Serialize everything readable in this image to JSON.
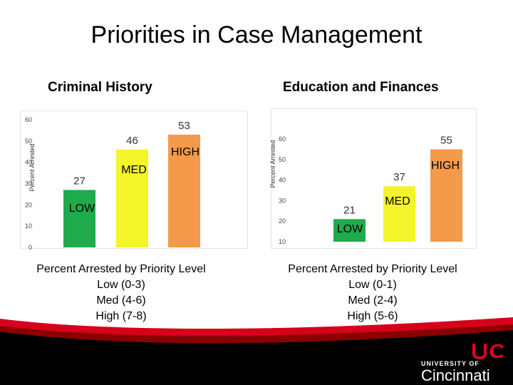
{
  "slide": {
    "title": "Priorities in Case Management"
  },
  "charts": [
    {
      "title": "Criminal History",
      "caption": [
        "Percent Arrested by Priority Level",
        "Low (0-3)",
        "Med (4-6)",
        "High (7-8)"
      ]
    },
    {
      "title": "Education and Finances",
      "caption": [
        "Percent Arrested by Priority Level",
        "Low (0-1)",
        "Med (2-4)",
        "High (5-6)"
      ]
    }
  ],
  "logo": {
    "university_of": "UNIVERSITY OF",
    "name": "Cincinnati"
  },
  "chart_data": [
    {
      "type": "bar",
      "title": "Criminal History",
      "ylabel": "Percent Arrested",
      "ylim": [
        0,
        60
      ],
      "yticks": [
        0,
        10,
        20,
        30,
        40,
        50,
        60
      ],
      "categories": [
        "LOW",
        "MED",
        "HIGH"
      ],
      "values": [
        27,
        46,
        53
      ],
      "colors": [
        "#1faa4c",
        "#f4f42a",
        "#f39a4b"
      ],
      "grid": false
    },
    {
      "type": "bar",
      "title": "Education and Finances",
      "ylabel": "Percent Arrested",
      "ylim": [
        10,
        60
      ],
      "yticks": [
        10,
        20,
        30,
        40,
        50,
        60
      ],
      "categories": [
        "LOW",
        "MED",
        "HIGH"
      ],
      "values": [
        21,
        37,
        55
      ],
      "colors": [
        "#1faa4c",
        "#f4f42a",
        "#f39a4b"
      ],
      "grid": false
    }
  ]
}
